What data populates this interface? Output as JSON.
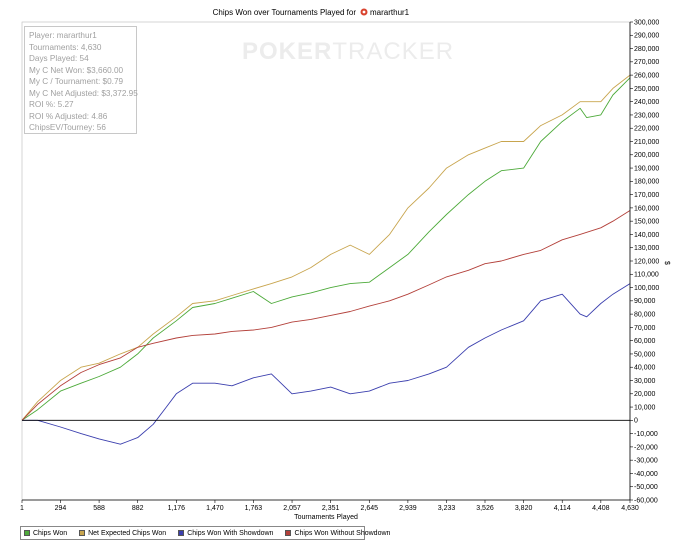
{
  "chart_data": {
    "type": "line",
    "title": "Chips Won over Tournaments Played for",
    "player_tag": "mararthur1",
    "xlabel": "Tournaments Played",
    "ylabel": "$",
    "xlim": [
      1,
      4630
    ],
    "ylim": [
      -60000,
      300000
    ],
    "x_ticks": [
      1,
      294,
      588,
      882,
      1176,
      1470,
      1763,
      2057,
      2351,
      2645,
      2939,
      3233,
      3526,
      3820,
      4114,
      4408,
      4630
    ],
    "x_tick_labels": [
      "1",
      "294",
      "588",
      "882",
      "1,176",
      "1,470",
      "1,763",
      "2,057",
      "2,351",
      "2,645",
      "2,939",
      "3,233",
      "3,526",
      "3,820",
      "4,114",
      "4,408",
      "4,630"
    ],
    "y_ticks": [
      -60000,
      -50000,
      -40000,
      -30000,
      -20000,
      -10000,
      0,
      10000,
      20000,
      30000,
      40000,
      50000,
      60000,
      70000,
      80000,
      90000,
      100000,
      110000,
      120000,
      130000,
      140000,
      150000,
      160000,
      170000,
      180000,
      190000,
      200000,
      210000,
      220000,
      230000,
      240000,
      250000,
      260000,
      270000,
      280000,
      290000,
      300000
    ],
    "y_tick_labels": [
      "-60,000",
      "-50,000",
      "-40,000",
      "-30,000",
      "-20,000",
      "-10,000",
      "0",
      "10,000",
      "20,000",
      "30,000",
      "40,000",
      "50,000",
      "60,000",
      "70,000",
      "80,000",
      "90,000",
      "100,000",
      "110,000",
      "120,000",
      "130,000",
      "140,000",
      "150,000",
      "160,000",
      "170,000",
      "180,000",
      "190,000",
      "200,000",
      "210,000",
      "220,000",
      "230,000",
      "240,000",
      "250,000",
      "260,000",
      "270,000",
      "280,000",
      "290,000",
      "300,000"
    ],
    "grid": false,
    "legend_position": "bottom-left",
    "series": [
      {
        "name": "Chips Won",
        "color": "#4daa3a",
        "x": [
          1,
          120,
          294,
          450,
          588,
          750,
          882,
          1000,
          1176,
          1300,
          1470,
          1600,
          1763,
          1900,
          2057,
          2200,
          2351,
          2500,
          2645,
          2800,
          2939,
          3100,
          3233,
          3400,
          3526,
          3650,
          3820,
          3950,
          4114,
          4250,
          4300,
          4408,
          4500,
          4630
        ],
        "values": [
          0,
          8000,
          22000,
          28000,
          33000,
          40000,
          50000,
          62000,
          75000,
          85000,
          88000,
          92000,
          97000,
          88000,
          93000,
          96000,
          100000,
          103000,
          104000,
          115000,
          125000,
          142000,
          155000,
          170000,
          180000,
          188000,
          190000,
          210000,
          225000,
          235000,
          228000,
          230000,
          245000,
          258000
        ]
      },
      {
        "name": "Net Expected Chips Won",
        "color": "#c8a54e",
        "x": [
          1,
          120,
          294,
          450,
          588,
          750,
          882,
          1000,
          1176,
          1300,
          1470,
          1600,
          1763,
          1900,
          2057,
          2200,
          2351,
          2500,
          2645,
          2800,
          2939,
          3100,
          3233,
          3400,
          3526,
          3650,
          3820,
          3950,
          4114,
          4250,
          4408,
          4500,
          4630
        ],
        "values": [
          0,
          14000,
          30000,
          40000,
          43000,
          50000,
          55000,
          65000,
          78000,
          88000,
          90000,
          94000,
          99000,
          103000,
          108000,
          115000,
          125000,
          132000,
          125000,
          140000,
          160000,
          175000,
          190000,
          200000,
          205000,
          210000,
          210000,
          222000,
          230000,
          240000,
          240000,
          250000,
          260000
        ]
      },
      {
        "name": "Chips Won With Showdown",
        "color": "#3b3fae",
        "x": [
          1,
          120,
          294,
          450,
          588,
          750,
          882,
          1000,
          1100,
          1176,
          1300,
          1470,
          1600,
          1763,
          1900,
          2057,
          2200,
          2351,
          2500,
          2645,
          2800,
          2939,
          3100,
          3233,
          3400,
          3526,
          3650,
          3820,
          3950,
          4114,
          4250,
          4300,
          4408,
          4500,
          4630
        ],
        "values": [
          0,
          0,
          -5000,
          -10000,
          -14000,
          -18000,
          -13000,
          -3000,
          10000,
          20000,
          28000,
          28000,
          26000,
          32000,
          35000,
          20000,
          22000,
          25000,
          20000,
          22000,
          28000,
          30000,
          35000,
          40000,
          55000,
          62000,
          68000,
          75000,
          90000,
          95000,
          80000,
          78000,
          88000,
          95000,
          103000
        ]
      },
      {
        "name": "Chips Won Without Showdown",
        "color": "#b3403a",
        "x": [
          1,
          120,
          294,
          450,
          588,
          750,
          882,
          1000,
          1176,
          1300,
          1470,
          1600,
          1763,
          1900,
          2057,
          2200,
          2351,
          2500,
          2645,
          2800,
          2939,
          3100,
          3233,
          3400,
          3526,
          3650,
          3820,
          3950,
          4114,
          4250,
          4408,
          4500,
          4630
        ],
        "values": [
          0,
          12000,
          26000,
          36000,
          42000,
          47000,
          55000,
          58000,
          62000,
          64000,
          65000,
          67000,
          68000,
          70000,
          74000,
          76000,
          79000,
          82000,
          86000,
          90000,
          95000,
          102000,
          108000,
          113000,
          118000,
          120000,
          125000,
          128000,
          136000,
          140000,
          145000,
          150000,
          158000
        ]
      }
    ]
  },
  "info_box": {
    "player": "Player: mararthur1",
    "tournaments": "Tournaments: 4,630",
    "days_played": "Days Played: 54",
    "net_won": "My C Net Won: $3,660.00",
    "per_tourney": "My C / Tournament: $0.79",
    "net_adjusted": "My C Net Adjusted: $3,372.95",
    "roi": "ROI %: 5.27",
    "roi_adjusted": "ROI % Adjusted: 4.86",
    "chipsev": "ChipsEV/Tourney: 56"
  },
  "watermark": {
    "part1": "POKER",
    "part2": "TRACKER"
  },
  "legend_icon": "poker-chip-icon"
}
